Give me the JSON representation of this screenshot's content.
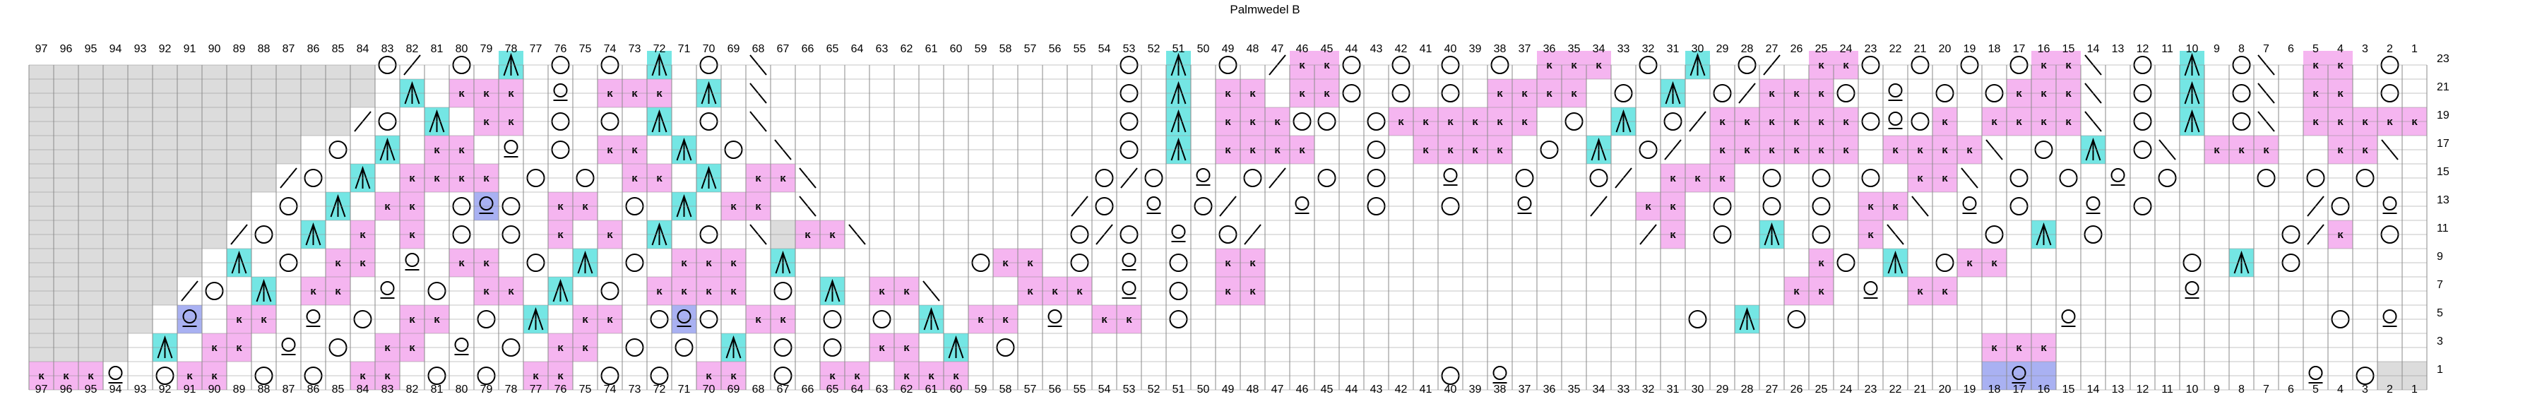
{
  "title": "Palmwedel B",
  "stitch_count": 97,
  "row_count": 23,
  "colors": {
    "knit": "#ffffff",
    "no_stitch": "#dcdcdc",
    "purl": "#f5b5f0",
    "decrease": "#74e6e4",
    "highlight": "#a9b1f2",
    "grid": "#8a8a8a"
  },
  "symbols": {
    "yo": "circle",
    "twisted": "twisted-stitch",
    "purl": "k-mark",
    "dec_right": "slash",
    "dec_left": "backslash",
    "cdd": "central-double-decrease"
  },
  "row_labels": [
    1,
    3,
    5,
    7,
    9,
    11,
    13,
    15,
    17,
    19,
    21,
    23
  ],
  "chart": {
    "key": {
      ".": "knit",
      "#": "no_stitch",
      "o": "yo",
      "q": "twisted",
      "k": "purl",
      "/": "dec_right",
      "\\": "dec_left",
      "A": "cdd",
      "Q": "twisted_highlight",
      "W": "knit_highlight"
    },
    "rows": [
      [
        "##############o/.o.A.o.o.A.o.\\..............o.A.o./kko.o.o.o.kkk.o.A.o/.kko.o.o.okk\\.o.A.o\\.kk.o.o.okk\\.o.A.o\\.kko.o.A.o",
        23
      ],
      [
        "##############.A.kkk.q.kkk.A.\\..............o.A.kk.kko.o.o.kkkk.o.A.o/kkko.q.o.okkk\\.o.A.o\\.kk.o.q.okk\\.o.A.o\\.kk..o./.o",
        21
      ],
      [
        "#############/o.A.kk.o.o.A.o.\\..............o.A.kkkoo.okkkkkk.o.A.o/kkkkkkoqok.kkkk\\.o.A.o\\.kkkkk.okk\\.o.A.o\\.kko.o\\.o",
        19
      ],
      [
        "###########.o.A.kk.q.o.kk.A.o.\\.............o.A.kkkk..o.kkkk.o.A.o/.kkkkkk.kkkk\\.o.A.o\\.kkk..kk\\..A.o\\.kkkk..o/",
        17
      ],
      [
        "##########/o.A.kkkk.o.o.kk.A.kk\\...........o/o.q.o/.o.o..q..o..o/.kkk.o.o.o.kk\\.o.o.q.o...o.o.o...o/o.q.o.\\",
        15
      ],
      [
        "#########.o.A.kk.oQo.kk.o.A.kk.\\........../o.q.o/..q..o..o..q../.kk.o.o.o.kk\\.q.o..q.o....../o.q.o.kk\\",
        13
      ],
      [
        "########/o.A.k.k.o.o.k.k.A.o.\\#kk\\........o/o.q.o/.............../k.o.A.o.k\\...o.A.o.......o/k.o.A.o.k\\",
        11
      ],
      [
        "#######.A.o.kk.q.kk.o.A.o.kkk.A.......okk.o.q.o.kk......................ko.A.okk.......o.A.o.........kk.o.q.o.kk",
        9
      ],
      [
        "######/o.A.kk.q.o.kk.A.o.kkkk.o.A.kk\\...kkk.q.o.kk.....................kk.q.kk.........q.........kko.q.okk",
        7
      ],
      [
        "#####.Q.kk.q.o.kk.o.A.kk.oQo.kk.o.o.A.kk.q.kk.o....................o.A.o..........q..........o.q.o",
        5
      ],
      [
        "####.A.kk.q.o.kk.q.o.kk.o.o.A.o.o.kk.A.o.......................................kkk..................o",
        3
      ],
      [
        "kkkq.okk.o.o.kk.o.o.kk.o.o.kk.o.kk.kkk...................o.q...................WQW..........q.o",
        1
      ]
    ]
  },
  "bottom_axis_numbers": "97-1"
}
